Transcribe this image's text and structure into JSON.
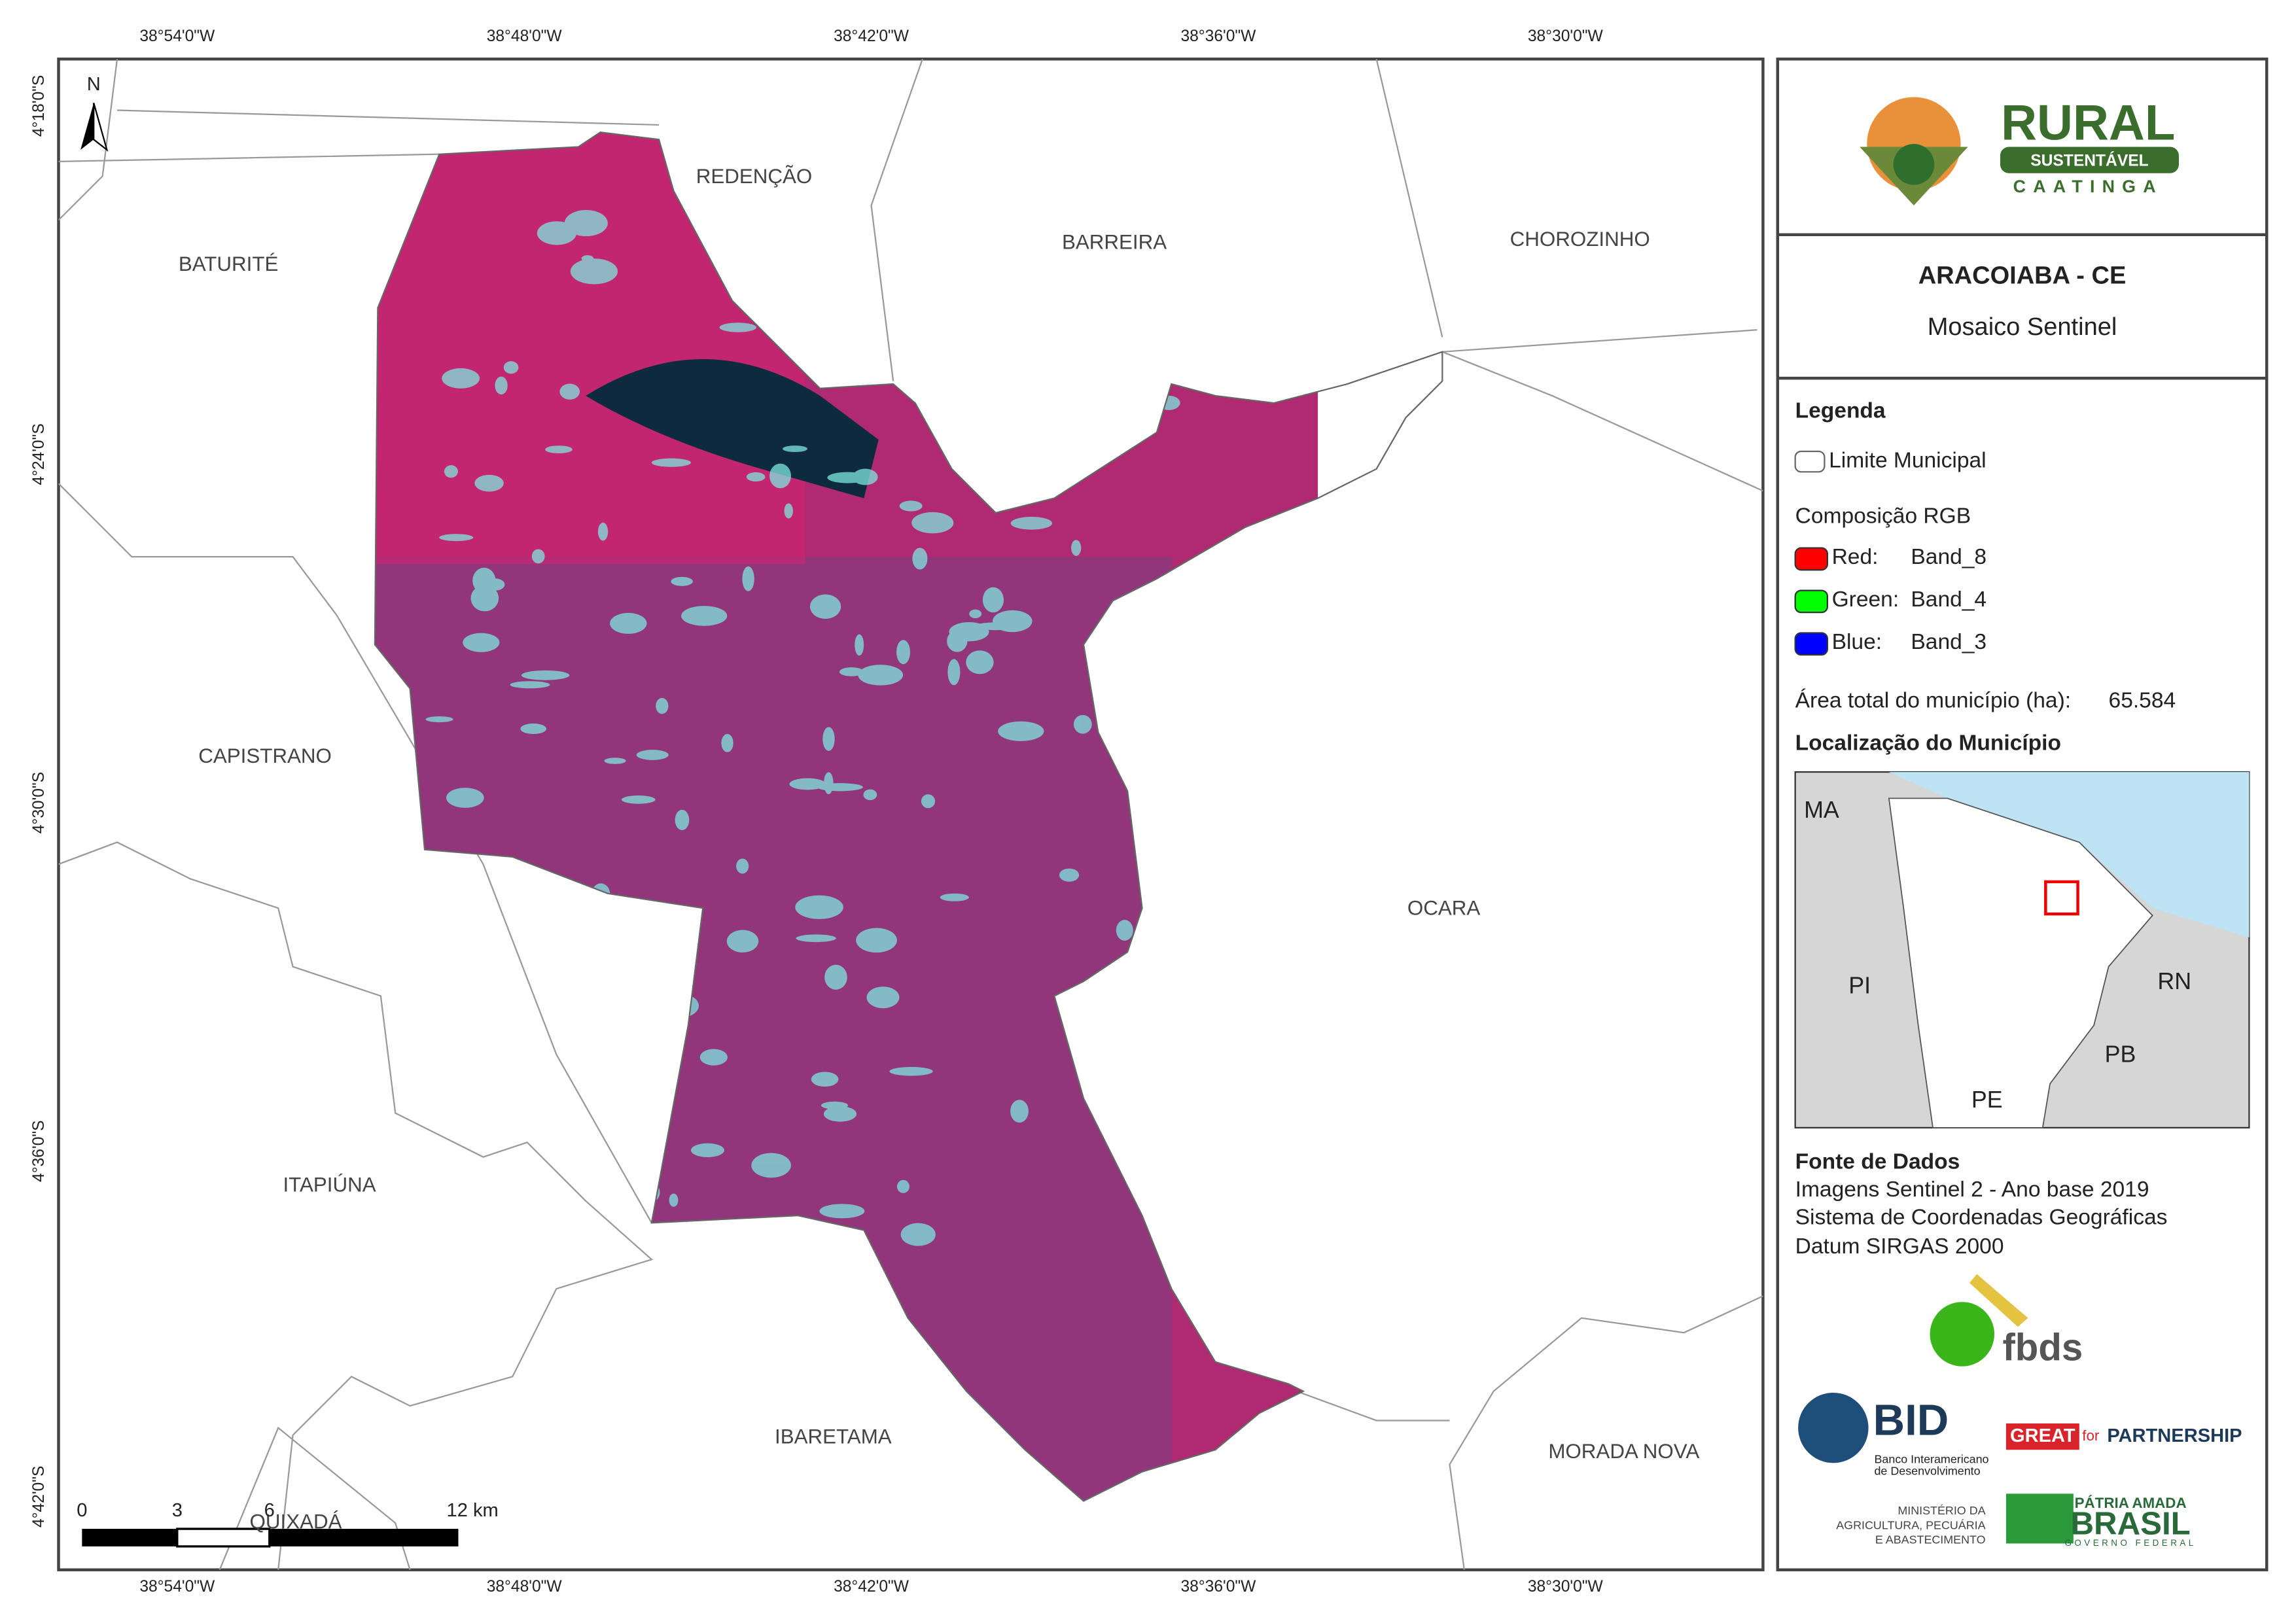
{
  "map": {
    "x_coords": [
      "38°54'0\"W",
      "38°48'0\"W",
      "38°42'0\"W",
      "38°36'0\"W",
      "38°30'0\"W"
    ],
    "y_coords": [
      "4°18'0\"S",
      "4°24'0\"S",
      "4°30'0\"S",
      "4°36'0\"S",
      "4°42'0\"S"
    ],
    "north": "N",
    "places": [
      "REDENÇÃO",
      "BATURITÉ",
      "BARREIRA",
      "CHOROZINHO",
      "CAPISTRANO",
      "OCARA",
      "ITAPIÚNA",
      "IBARETAMA",
      "MORADA NOVA",
      "QUIXADÁ"
    ],
    "scale": [
      "0",
      "3",
      "6",
      "12 km"
    ]
  },
  "panel": {
    "logo": {
      "title": "RURAL",
      "sub": "SUSTENTÁVEL",
      "sub2": "CAATINGA"
    },
    "title": "ARACOIABA - CE",
    "subtitle": "Mosaico Sentinel",
    "legend": {
      "heading": "Legenda",
      "limit": "Limite Municipal",
      "rgb_heading": "Composição RGB",
      "bands": [
        {
          "channel": "Red:",
          "band": "Band_8",
          "color": "#ff0000"
        },
        {
          "channel": "Green:",
          "band": "Band_4",
          "color": "#00ff00"
        },
        {
          "channel": "Blue:",
          "band": "Band_3",
          "color": "#0000ff"
        }
      ]
    },
    "area_label": "Área total do município (ha):",
    "area": "65.584",
    "location_heading": "Localização do Município",
    "inset_labels": [
      "MA",
      "PI",
      "RN",
      "PB",
      "PE"
    ],
    "sources_heading": "Fonte de Dados",
    "sources": [
      "Imagens Sentinel 2 - Ano base 2019",
      "Sistema de Coordenadas Geográficas",
      "Datum SIRGAS 2000"
    ]
  },
  "logos": {
    "fbds": "fbds",
    "bid": "BID",
    "bid_sub": [
      "Banco Interamericano",
      "de Desenvolvimento"
    ],
    "great": "GREAT",
    "for": "for",
    "partnership": "PARTNERSHIP",
    "ministry": [
      "MINISTÉRIO DA",
      "AGRICULTURA, PECUÁRIA",
      "E ABASTECIMENTO"
    ],
    "brasil": [
      "PÁTRIA AMADA",
      "BRASIL",
      "GOVERNO FEDERAL"
    ]
  }
}
